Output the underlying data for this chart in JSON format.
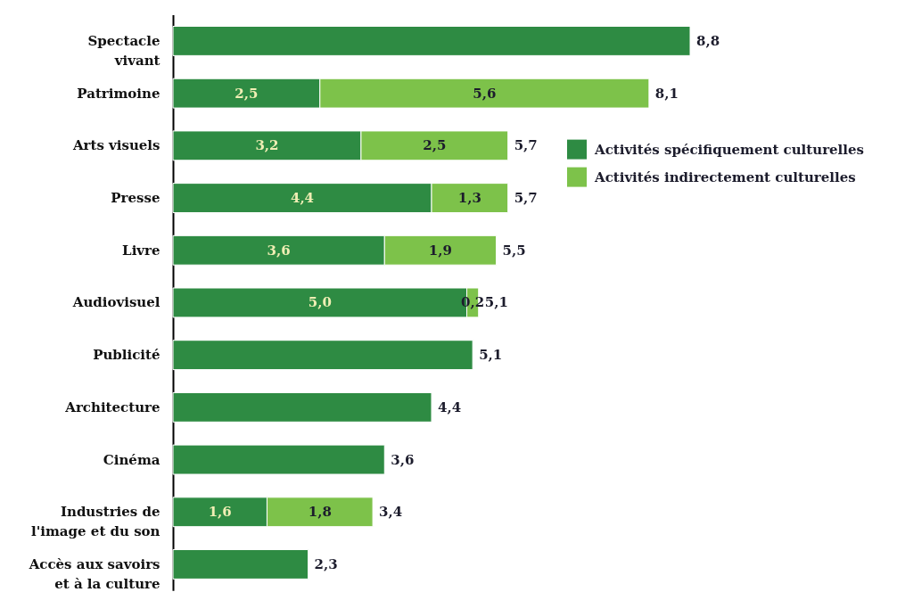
{
  "chart_data": {
    "type": "bar",
    "orientation": "horizontal",
    "stacked": true,
    "categories": [
      "Spectacle vivant",
      "Patrimoine",
      "Arts visuels",
      "Presse",
      "Livre",
      "Audiovisuel",
      "Publicité",
      "Architecture",
      "Cinéma",
      "Industries de l'image et du son",
      "Accès aux savoirs et à la culture"
    ],
    "series": [
      {
        "name": "Activités spécifiquement culturelles",
        "color": "#2e8b43",
        "values": [
          8.8,
          2.5,
          3.2,
          4.4,
          3.6,
          5.0,
          5.1,
          4.4,
          3.6,
          1.6,
          2.3
        ],
        "value_labels": [
          null,
          "2,5",
          "3,2",
          "4,4",
          "3,6",
          "5,0",
          null,
          null,
          null,
          "1,6",
          null
        ]
      },
      {
        "name": "Activités indirectement culturelles",
        "color": "#7dc24a",
        "values": [
          null,
          5.6,
          2.5,
          1.3,
          1.9,
          0.2,
          null,
          null,
          null,
          1.8,
          null
        ],
        "value_labels": [
          null,
          "5,6",
          "2,5",
          "1,3",
          "1,9",
          "0,2",
          null,
          null,
          null,
          "1,8",
          null
        ]
      }
    ],
    "totals": [
      "8,8",
      "8,1",
      "5,7",
      "5,7",
      "5,5",
      "5,1",
      "5,1",
      "4,4",
      "3,6",
      "3,4",
      "2,3"
    ],
    "legend": "top right"
  }
}
